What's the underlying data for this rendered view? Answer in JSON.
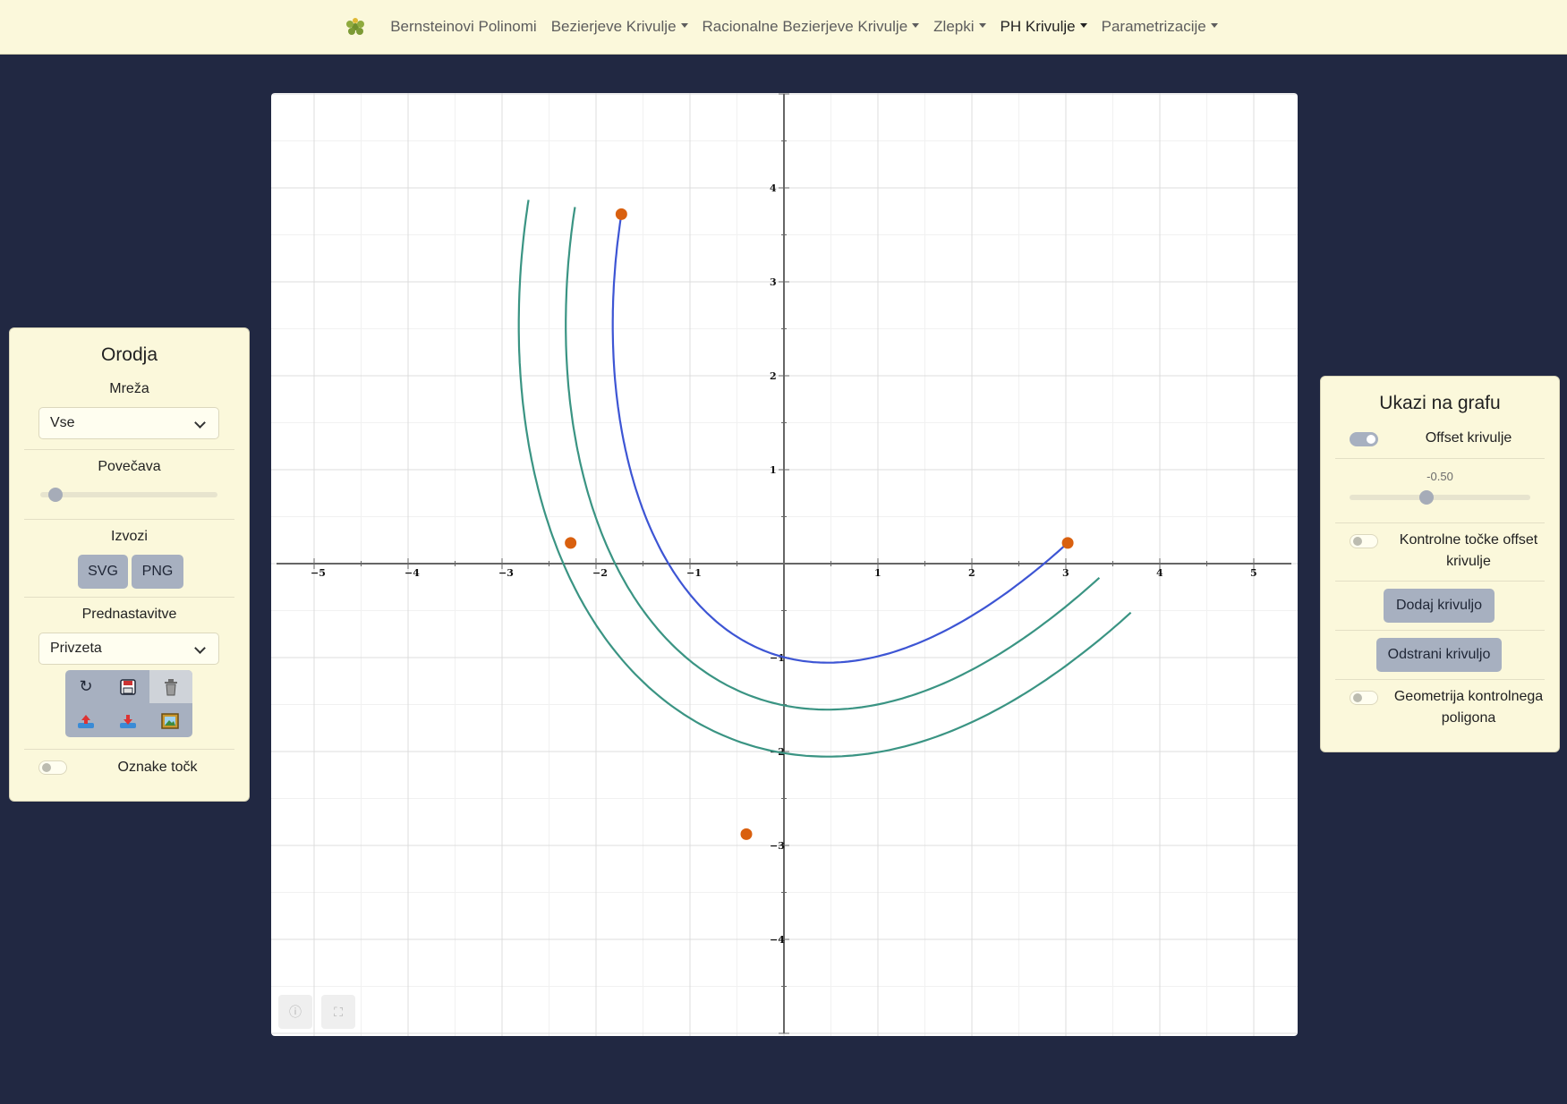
{
  "nav": {
    "items": [
      {
        "label": "Bernsteinovi Polinomi",
        "dropdown": false,
        "active": false
      },
      {
        "label": "Bezierjeve Krivulje",
        "dropdown": true,
        "active": false
      },
      {
        "label": "Racionalne Bezierjeve Krivulje",
        "dropdown": true,
        "active": false
      },
      {
        "label": "Zlepki",
        "dropdown": true,
        "active": false
      },
      {
        "label": "PH Krivulje",
        "dropdown": true,
        "active": true
      },
      {
        "label": "Parametrizacije",
        "dropdown": true,
        "active": false
      }
    ]
  },
  "tools": {
    "title": "Orodja",
    "grid_label": "Mreža",
    "grid_value": "Vse",
    "zoom_label": "Povečava",
    "zoom_fraction": 0.05,
    "export_label": "Izvozi",
    "export_svg": "SVG",
    "export_png": "PNG",
    "presets_label": "Prednastavitve",
    "presets_value": "Privzeta",
    "tool_icons": [
      "reset-icon",
      "save-icon",
      "trash-icon",
      "upload-icon",
      "download-icon",
      "image-icon"
    ],
    "point_labels": "Oznake točk",
    "point_labels_on": false
  },
  "show": {
    "title": "Ukazi na grafu",
    "offset_label": "Offset krivulje",
    "offset_on": true,
    "offset_value": "-0.50",
    "offset_fraction": 0.42,
    "offset_ctrl_label": "Kontrolne točke offset krivulje",
    "offset_ctrl_on": false,
    "add_curve": "Dodaj krivuljo",
    "remove_curve": "Odstrani krivuljo",
    "geometry_label": "Geometrija kontrolnega poligona",
    "geometry_on": false
  },
  "chart_data": {
    "type": "scatter",
    "xlim": [
      -5.4,
      5.4
    ],
    "ylim": [
      -5,
      5
    ],
    "grid": true,
    "x_ticks": [
      -5,
      -4,
      -3,
      -2,
      -1,
      1,
      2,
      3,
      4,
      5
    ],
    "y_ticks": [
      4,
      3,
      2,
      1,
      -1,
      -2,
      -3,
      -4
    ],
    "control_points": [
      [
        -1.73,
        3.72
      ],
      [
        -2.27,
        0.22
      ],
      [
        -0.4,
        -2.88
      ],
      [
        3.02,
        0.22
      ]
    ],
    "curve_color": "#3d55d4",
    "offset_color": "#3a9483",
    "point_color": "#d9600f",
    "offset_distances": [
      0.5,
      1.0
    ]
  }
}
